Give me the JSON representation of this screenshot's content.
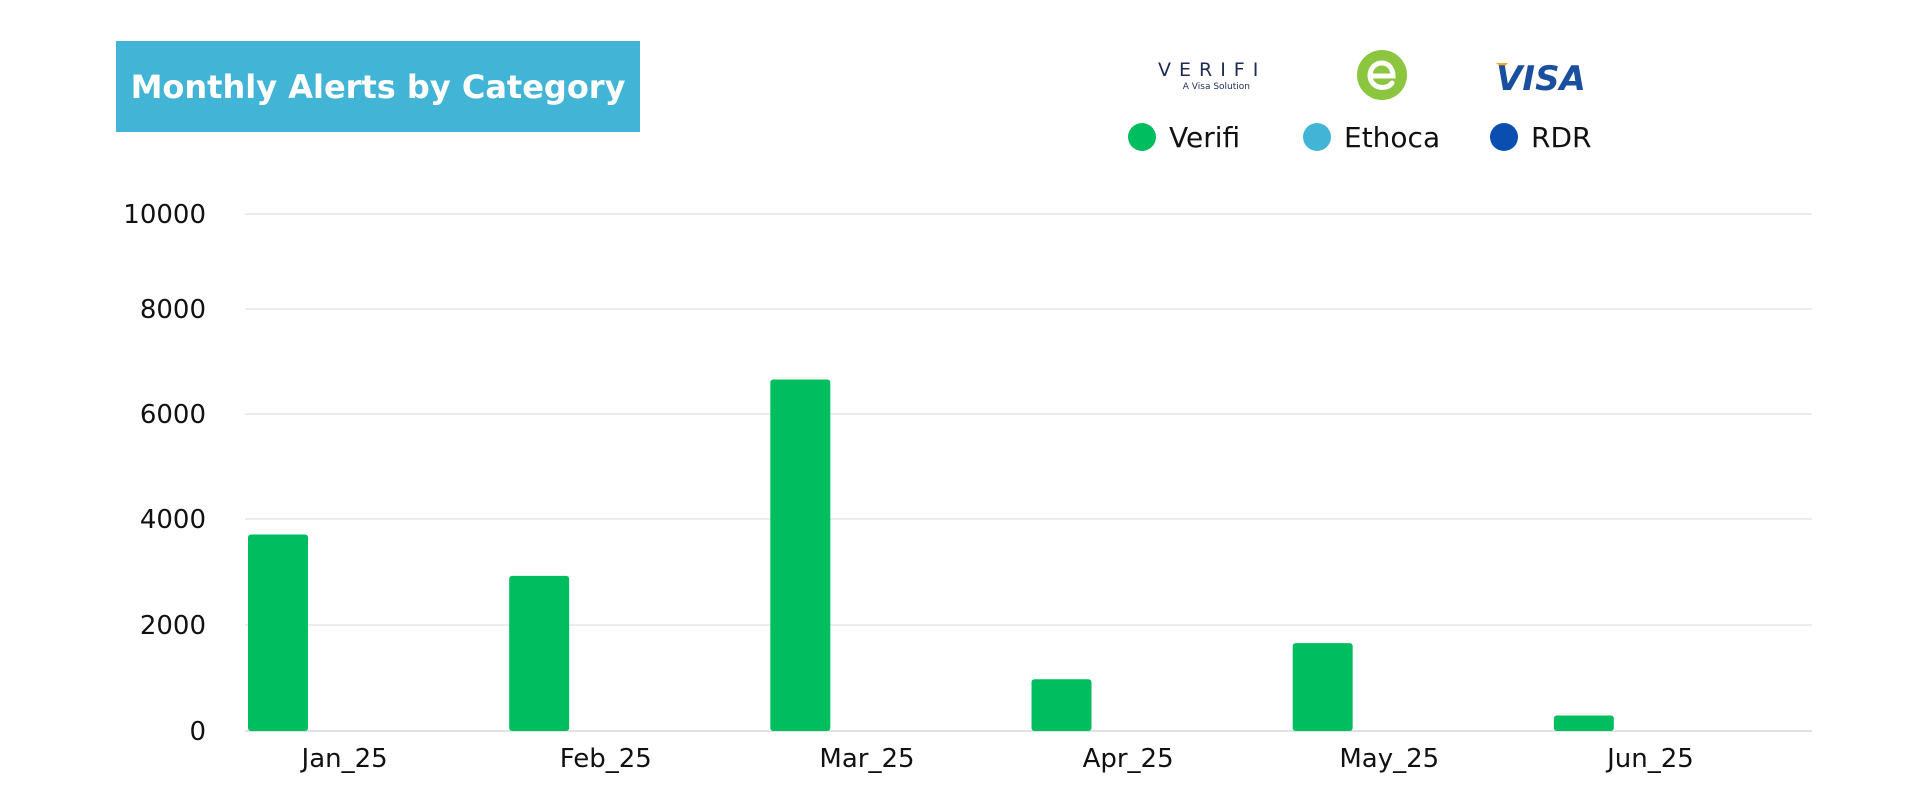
{
  "chart_data": {
    "type": "bar",
    "title": "Monthly Alerts by Category",
    "xlabel": "",
    "ylabel": "",
    "categories": [
      "Jan_25",
      "Feb_25",
      "Mar_25",
      "Apr_25",
      "May_25",
      "Jun_25"
    ],
    "series": [
      {
        "name": "Verifi",
        "color": "#00be5f",
        "values": [
          3800,
          3000,
          6800,
          1000,
          1700,
          300
        ]
      },
      {
        "name": "Ethoca",
        "color": "#42b5d6",
        "values": [
          0,
          0,
          0,
          0,
          0,
          0
        ]
      },
      {
        "name": "RDR",
        "color": "#0a4fb0",
        "values": [
          0,
          0,
          0,
          0,
          0,
          0
        ]
      }
    ],
    "ylim": [
      0,
      10000
    ],
    "yticks": [
      "10000",
      "8000",
      "6000",
      "4000",
      "2000",
      "0"
    ],
    "grid": true,
    "legend_position": "top-right"
  },
  "logos": {
    "verifi": {
      "word": "VERIFI",
      "tagline": "A Visa Solution",
      "icon": "verifi-logo"
    },
    "ethoca": {
      "icon": "ethoca-logo",
      "color": "#8cc63f"
    },
    "visa": {
      "word": "VISA",
      "icon": "visa-logo",
      "color": "#1a4fa0",
      "accent": "#f7a823"
    }
  },
  "colors": {
    "title_background": "#42b5d6",
    "gridline": "#d9d9d9",
    "axis_text": "#111111"
  }
}
